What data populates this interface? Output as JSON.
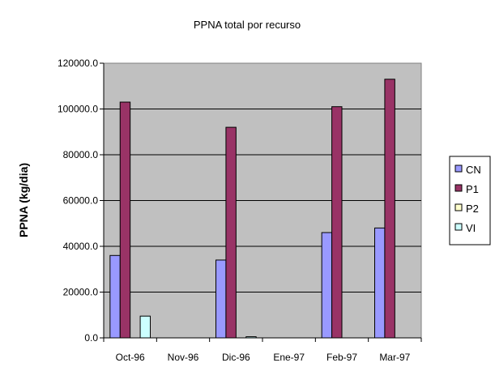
{
  "chart_data": {
    "type": "bar",
    "title": "PPNA total por recurso",
    "xlabel": "",
    "ylabel": "PPNA (kg/dia)",
    "categories": [
      "Oct-96",
      "Nov-96",
      "Dic-96",
      "Ene-97",
      "Feb-97",
      "Mar-97"
    ],
    "ylim": [
      0,
      120000
    ],
    "yticks": [
      "0.0",
      "20000.0",
      "40000.0",
      "60000.0",
      "80000.0",
      "100000.0",
      "120000.0"
    ],
    "grid": true,
    "legend_position": "right",
    "series": [
      {
        "name": "CN",
        "color": "#9999ff",
        "values": [
          36000,
          0,
          34000,
          0,
          46000,
          48000
        ]
      },
      {
        "name": "P1",
        "color": "#993366",
        "values": [
          103000,
          0,
          92000,
          0,
          101000,
          113000
        ]
      },
      {
        "name": "P2",
        "color": "#ffffcc",
        "values": [
          0,
          0,
          0,
          0,
          0,
          0
        ]
      },
      {
        "name": "VI",
        "color": "#ccffff",
        "values": [
          9500,
          0,
          500,
          0,
          0,
          0
        ]
      }
    ],
    "plot_background": "#c0c0c0"
  }
}
